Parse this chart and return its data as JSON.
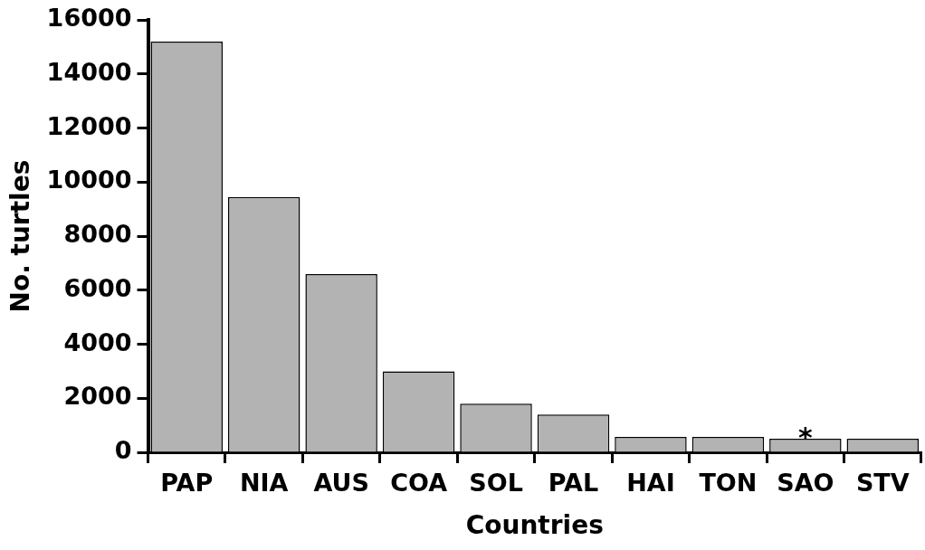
{
  "chart_data": {
    "type": "bar",
    "xlabel": "Countries",
    "ylabel": "No. turtles",
    "categories": [
      "PAP",
      "NIA",
      "AUS",
      "COA",
      "SOL",
      "PAL",
      "HAI",
      "TON",
      "SAO",
      "STV"
    ],
    "values": [
      15200,
      9450,
      6600,
      3000,
      1800,
      1400,
      570,
      570,
      500,
      500
    ],
    "color": "#b3b3b3",
    "ylim": [
      0,
      16000
    ],
    "yticks": [
      0,
      2000,
      4000,
      6000,
      8000,
      10000,
      12000,
      14000,
      16000
    ],
    "grid": false,
    "legend": false,
    "annotations": [
      {
        "text": "*",
        "x": "SAO",
        "y": 500
      }
    ]
  }
}
